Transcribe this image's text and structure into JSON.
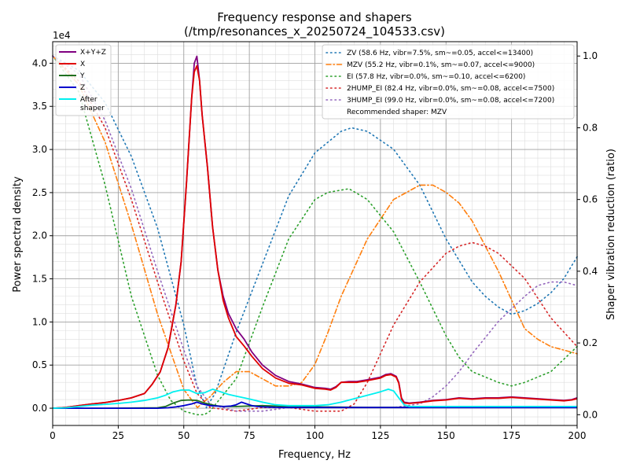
{
  "chart_data": {
    "type": "line",
    "title": "Frequency response and shapers",
    "subtitle": "(/tmp/resonances_x_20250724_104533.csv)",
    "xlabel": "Frequency, Hz",
    "ylabel": "Power spectral density",
    "y2label": "Shaper vibration reduction (ratio)",
    "y_offset_label": "1e4",
    "xlim": [
      0,
      200
    ],
    "ylim": [
      -2000,
      42500
    ],
    "y2lim": [
      -0.03,
      1.04
    ],
    "x_ticks": [
      0,
      25,
      50,
      75,
      100,
      125,
      150,
      175,
      200
    ],
    "y_ticks": [
      0,
      5000,
      10000,
      15000,
      20000,
      25000,
      30000,
      35000,
      40000
    ],
    "y_tick_labels": [
      "0.0",
      "0.5",
      "1.0",
      "1.5",
      "2.0",
      "2.5",
      "3.0",
      "3.5",
      "4.0"
    ],
    "y2_ticks": [
      0,
      0.2,
      0.4,
      0.6,
      0.8,
      1.0
    ],
    "y2_tick_labels": [
      "0.0",
      "0.2",
      "0.4",
      "0.6",
      "0.8",
      "1.0"
    ],
    "grid": true,
    "legend_left_position": "upper-left",
    "legend_right_position": "upper-right",
    "recommended_text": "Recommended shaper: MZV",
    "psd_series": [
      {
        "name": "X+Y+Z",
        "color": "#800080",
        "x": [
          0,
          5,
          10,
          15,
          20,
          25,
          30,
          35,
          38,
          41,
          44,
          47,
          49,
          51,
          53,
          54,
          55,
          56,
          57,
          59,
          61,
          63,
          65,
          67,
          70,
          73,
          76,
          80,
          85,
          90,
          95,
          100,
          104,
          106,
          108,
          110,
          113,
          116,
          120,
          125,
          127,
          129,
          131,
          132,
          133,
          134,
          136,
          140,
          145,
          150,
          155,
          160,
          165,
          170,
          175,
          180,
          185,
          190,
          195,
          198,
          200
        ],
        "y": [
          0,
          100,
          300,
          500,
          650,
          900,
          1200,
          1700,
          2800,
          4200,
          7000,
          12000,
          17000,
          26000,
          36000,
          40000,
          40800,
          38000,
          34000,
          28000,
          21000,
          16000,
          13000,
          11000,
          9200,
          8000,
          6500,
          5000,
          3800,
          3100,
          2800,
          2400,
          2300,
          2200,
          2500,
          3000,
          3100,
          3100,
          3300,
          3600,
          3900,
          4000,
          3700,
          3000,
          1200,
          700,
          600,
          700,
          900,
          1000,
          1200,
          1100,
          1200,
          1200,
          1300,
          1200,
          1100,
          1000,
          900,
          1000,
          1200
        ]
      },
      {
        "name": "X",
        "color": "#e00000",
        "x": [
          0,
          5,
          10,
          15,
          20,
          25,
          30,
          35,
          38,
          41,
          44,
          47,
          49,
          51,
          53,
          54,
          55,
          56,
          57,
          59,
          61,
          63,
          65,
          67,
          70,
          73,
          76,
          80,
          85,
          90,
          95,
          100,
          104,
          106,
          108,
          110,
          113,
          116,
          120,
          125,
          127,
          129,
          131,
          132,
          133,
          134,
          136,
          140,
          145,
          150,
          155,
          160,
          165,
          170,
          175,
          180,
          185,
          190,
          195,
          198,
          200
        ],
        "y": [
          0,
          100,
          300,
          500,
          650,
          900,
          1200,
          1700,
          2800,
          4200,
          7000,
          12000,
          17000,
          26000,
          36000,
          39000,
          39700,
          38000,
          34000,
          28000,
          21000,
          16000,
          12500,
          10500,
          8300,
          7200,
          6000,
          4600,
          3500,
          2900,
          2700,
          2300,
          2200,
          2100,
          2400,
          3000,
          3000,
          3000,
          3200,
          3500,
          3800,
          3900,
          3600,
          2900,
          1100,
          600,
          550,
          650,
          850,
          950,
          1150,
          1050,
          1150,
          1150,
          1250,
          1150,
          1050,
          950,
          850,
          950,
          1100
        ]
      },
      {
        "name": "Y",
        "color": "#207020",
        "x": [
          0,
          20,
          40,
          43,
          46,
          49,
          52,
          55,
          58,
          62,
          65,
          70,
          75,
          80,
          90,
          100,
          120,
          140,
          160,
          180,
          200
        ],
        "y": [
          0,
          0,
          50,
          200,
          600,
          900,
          950,
          900,
          600,
          300,
          200,
          200,
          250,
          300,
          200,
          150,
          100,
          100,
          100,
          100,
          100
        ]
      },
      {
        "name": "Z",
        "color": "#0000cc",
        "x": [
          0,
          40,
          44,
          47,
          50,
          53,
          55,
          57,
          60,
          65,
          68,
          70,
          72,
          74,
          76,
          78,
          80,
          85,
          90,
          100,
          120,
          140,
          160,
          180,
          200
        ],
        "y": [
          0,
          0,
          50,
          150,
          300,
          500,
          700,
          500,
          300,
          200,
          250,
          400,
          700,
          500,
          300,
          200,
          150,
          100,
          80,
          80,
          80,
          80,
          80,
          80,
          80
        ]
      },
      {
        "name": "After\nshaper",
        "color": "#00f0f0",
        "x": [
          0,
          5,
          10,
          15,
          20,
          25,
          30,
          35,
          40,
          43,
          46,
          49,
          52,
          55,
          58,
          61,
          64,
          67,
          70,
          73,
          76,
          80,
          85,
          90,
          95,
          100,
          105,
          110,
          115,
          120,
          125,
          128,
          130,
          132,
          134,
          136,
          140,
          150,
          160,
          170,
          180,
          190,
          200
        ],
        "y": [
          0,
          50,
          200,
          350,
          450,
          550,
          700,
          900,
          1200,
          1500,
          1900,
          2100,
          2100,
          1700,
          1800,
          2200,
          1900,
          1600,
          1400,
          1200,
          1000,
          700,
          400,
          300,
          300,
          300,
          400,
          700,
          1100,
          1500,
          1900,
          2200,
          2000,
          1200,
          400,
          200,
          200,
          200,
          200,
          200,
          200,
          200,
          200
        ]
      }
    ],
    "shaper_series": [
      {
        "name": "ZV (58.6 Hz, vibr=7.5%, sm~=0.05, accel<=13400)",
        "color": "#1f77b4",
        "dash": "1.5,4",
        "x": [
          0,
          10,
          20,
          30,
          40,
          50,
          55,
          58.6,
          62,
          70,
          80,
          90,
          100,
          110,
          114,
          120,
          130,
          140,
          150,
          160,
          165,
          170,
          175,
          180,
          185,
          190,
          195,
          200
        ],
        "y": [
          1.0,
          0.96,
          0.87,
          0.72,
          0.52,
          0.25,
          0.08,
          0.02,
          0.06,
          0.23,
          0.42,
          0.61,
          0.73,
          0.79,
          0.8,
          0.79,
          0.74,
          0.64,
          0.49,
          0.37,
          0.33,
          0.3,
          0.28,
          0.29,
          0.31,
          0.34,
          0.38,
          0.44
        ]
      },
      {
        "name": "MZV (55.2 Hz, vibr=0.1%, sm~=0.07, accel<=9000)",
        "color": "#ff7f0e",
        "dash": "6,3,1.5,3",
        "x": [
          0,
          10,
          20,
          30,
          40,
          50,
          55.2,
          60,
          65,
          70,
          75,
          80,
          85,
          90,
          95,
          100,
          105,
          110,
          120,
          130,
          140,
          145,
          150,
          155,
          160,
          170,
          180,
          185,
          190,
          195,
          200
        ],
        "y": [
          1.0,
          0.92,
          0.76,
          0.53,
          0.28,
          0.07,
          0.02,
          0.05,
          0.09,
          0.12,
          0.12,
          0.1,
          0.08,
          0.08,
          0.09,
          0.14,
          0.23,
          0.33,
          0.49,
          0.6,
          0.64,
          0.64,
          0.62,
          0.59,
          0.54,
          0.4,
          0.24,
          0.21,
          0.19,
          0.18,
          0.17
        ]
      },
      {
        "name": "EI (57.8 Hz, vibr=0.0%, sm~=0.10, accel<=6200)",
        "color": "#2ca02c",
        "dash": "1.5,4",
        "x": [
          0,
          10,
          20,
          30,
          40,
          45,
          50,
          55,
          57.8,
          60,
          70,
          80,
          90,
          100,
          105,
          113,
          120,
          130,
          140,
          150,
          155,
          160,
          170,
          175,
          180,
          190,
          200
        ],
        "y": [
          1.0,
          0.9,
          0.64,
          0.33,
          0.11,
          0.04,
          0.01,
          0.0,
          0.0,
          0.01,
          0.1,
          0.3,
          0.49,
          0.6,
          0.62,
          0.63,
          0.6,
          0.51,
          0.37,
          0.22,
          0.16,
          0.12,
          0.09,
          0.08,
          0.09,
          0.12,
          0.19
        ]
      },
      {
        "name": "2HUMP_EI (82.4 Hz, vibr=0.0%, sm~=0.08, accel<=7500)",
        "color": "#d62728",
        "dash": "1.5,4",
        "x": [
          0,
          10,
          20,
          30,
          40,
          50,
          55,
          60,
          70,
          80,
          85,
          90,
          100,
          110,
          115,
          120,
          125,
          130,
          140,
          150,
          155,
          160,
          165,
          170,
          180,
          190,
          200
        ],
        "y": [
          1.0,
          0.93,
          0.8,
          0.6,
          0.37,
          0.15,
          0.06,
          0.02,
          0.01,
          0.02,
          0.02,
          0.02,
          0.01,
          0.01,
          0.03,
          0.09,
          0.17,
          0.25,
          0.37,
          0.45,
          0.47,
          0.48,
          0.47,
          0.45,
          0.38,
          0.27,
          0.19
        ]
      },
      {
        "name": "3HUMP_EI (99.0 Hz, vibr=0.0%, sm~=0.08, accel<=7200)",
        "color": "#9467bd",
        "dash": "1.5,4",
        "x": [
          0,
          10,
          20,
          30,
          40,
          50,
          55,
          60,
          70,
          80,
          90,
          100,
          110,
          120,
          130,
          140,
          145,
          150,
          155,
          160,
          170,
          180,
          185,
          190,
          195,
          200
        ],
        "y": [
          1.0,
          0.95,
          0.82,
          0.63,
          0.4,
          0.18,
          0.08,
          0.03,
          0.01,
          0.01,
          0.02,
          0.02,
          0.02,
          0.02,
          0.02,
          0.03,
          0.05,
          0.08,
          0.12,
          0.17,
          0.26,
          0.33,
          0.36,
          0.37,
          0.37,
          0.36
        ]
      }
    ]
  }
}
